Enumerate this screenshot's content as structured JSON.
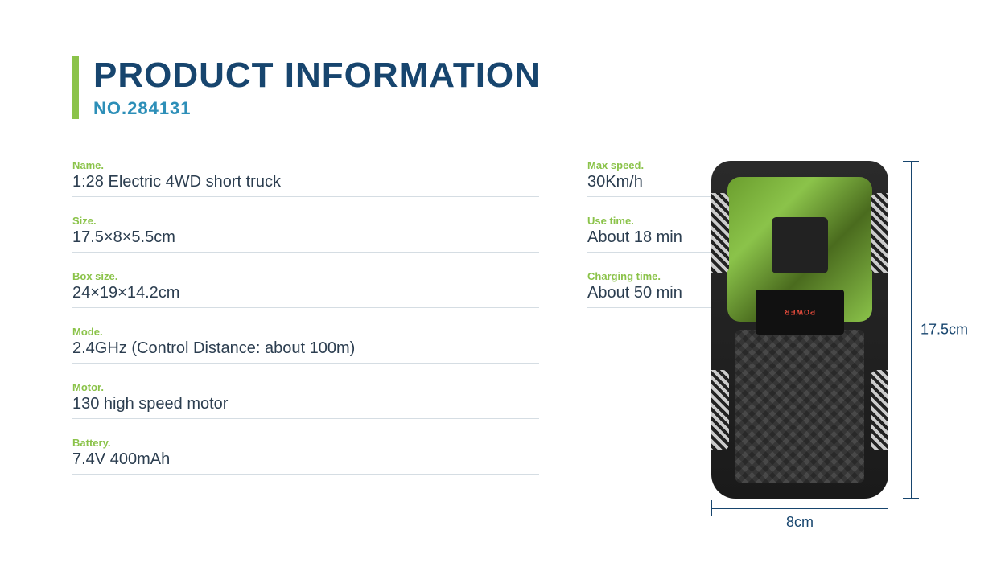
{
  "header": {
    "title": "PRODUCT INFORMATION",
    "subtitle": "NO.284131",
    "title_color": "#17456e",
    "subtitle_color": "#2d8fb8",
    "accent_bar_color": "#8bc34a"
  },
  "specs": {
    "label_color": "#8bc34a",
    "value_color": "#2c3e50",
    "divider_color": "#d5dde3",
    "left": [
      {
        "label": "Name.",
        "value": "1:28 Electric 4WD short truck"
      },
      {
        "label": "Size.",
        "value": "17.5×8×5.5cm"
      },
      {
        "label": "Box size.",
        "value": "24×19×14.2cm"
      }
    ],
    "right": [
      {
        "label": "Max speed.",
        "value": "30Km/h"
      },
      {
        "label": "Use time.",
        "value": "About 18 min"
      },
      {
        "label": "Charging time.",
        "value": "About 50 min"
      }
    ],
    "full": [
      {
        "label": "Mode.",
        "value": "2.4GHz (Control Distance: about 100m)"
      },
      {
        "label": "Motor.",
        "value": "130 high speed motor"
      },
      {
        "label": "Battery.",
        "value": "7.4V 400mAh"
      }
    ]
  },
  "diagram": {
    "height_label": "17.5cm",
    "width_label": "8cm",
    "badge_text": "POWER",
    "dimension_line_color": "#17456e",
    "truck_body_color": "#1a1a1a",
    "truck_accent_color": "#8bc34a"
  }
}
